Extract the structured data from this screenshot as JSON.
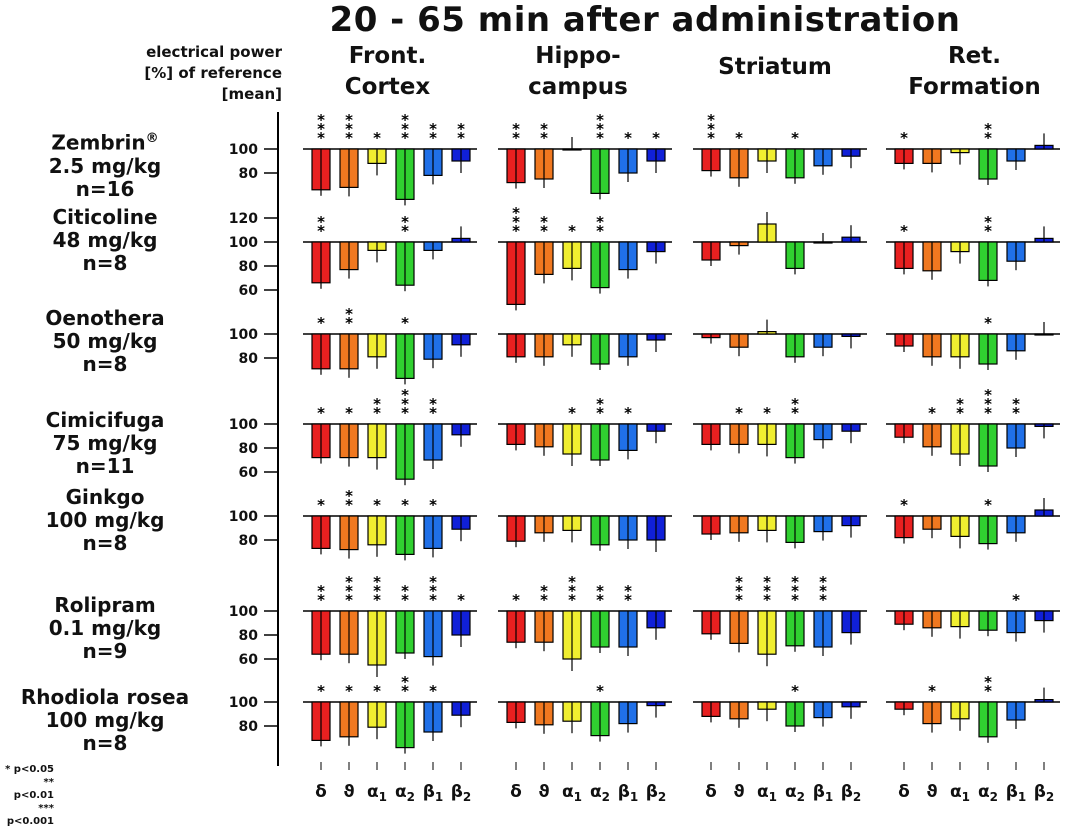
{
  "title": "20 - 65 min after administration",
  "y_axis_note": [
    "electrical power",
    "[%] of reference",
    "[mean]"
  ],
  "regions": [
    {
      "line1": "Front.",
      "line2": "Cortex"
    },
    {
      "line1": "Hippo-",
      "line2": "campus"
    },
    {
      "line1": "Striatum",
      "line2": ""
    },
    {
      "line1": "Ret.",
      "line2": "Formation"
    }
  ],
  "bands": [
    "δ",
    "ϑ",
    "α1",
    "α2",
    "β1",
    "β2"
  ],
  "band_colors": [
    "#e82020",
    "#f07820",
    "#f0ee30",
    "#30d030",
    "#2070e8",
    "#1020d8"
  ],
  "significance_legend": [
    "* p<0.05",
    "** p<0.01",
    "*** p<0.001"
  ],
  "chart_data": {
    "type": "bar",
    "title": "20 - 65 min after administration",
    "ylabel": "electrical power [%] of reference [mean]",
    "reference_line": 100,
    "categories": [
      "δ",
      "ϑ",
      "α1",
      "α2",
      "β1",
      "β2"
    ],
    "drugs": [
      {
        "name": "Zembrin®",
        "dose": "2.5 mg/kg",
        "n": "n=16",
        "ticks": [
          "100",
          "80"
        ],
        "regions": [
          {
            "values": [
              66,
              68,
              88,
              58,
              78,
              90
            ],
            "sig": [
              "***",
              "***",
              "*",
              "***",
              "**",
              "**"
            ]
          },
          {
            "values": [
              72,
              75,
              100,
              63,
              80,
              90
            ],
            "sig": [
              "**",
              "**",
              "",
              "***",
              "*",
              "*"
            ]
          },
          {
            "values": [
              82,
              76,
              90,
              76,
              86,
              94
            ],
            "sig": [
              "***",
              "*",
              "",
              "*",
              "",
              ""
            ]
          },
          {
            "values": [
              88,
              88,
              97,
              75,
              90,
              103
            ],
            "sig": [
              "*",
              "",
              "",
              "**",
              "",
              ""
            ]
          }
        ]
      },
      {
        "name": "Citicoline",
        "dose": "48 mg/kg",
        "n": "n=8",
        "ticks": [
          "120",
          "100",
          "80",
          "60"
        ],
        "regions": [
          {
            "values": [
              66,
              77,
              93,
              64,
              93,
              103
            ],
            "sig": [
              "**",
              "",
              "",
              "**",
              "",
              ""
            ]
          },
          {
            "values": [
              48,
              73,
              78,
              62,
              77,
              92
            ],
            "sig": [
              "***",
              "**",
              "*",
              "**",
              "",
              ""
            ]
          },
          {
            "values": [
              85,
              97,
              115,
              78,
              100,
              104
            ],
            "sig": [
              "",
              "",
              "",
              "",
              "",
              ""
            ]
          },
          {
            "values": [
              78,
              76,
              92,
              68,
              84,
              103
            ],
            "sig": [
              "*",
              "",
              "",
              "**",
              "",
              ""
            ]
          }
        ]
      },
      {
        "name": "Oenothera",
        "dose": "50 mg/kg",
        "n": "n=8",
        "ticks": [
          "100",
          "80"
        ],
        "regions": [
          {
            "values": [
              71,
              71,
              81,
              63,
              79,
              91
            ],
            "sig": [
              "*",
              "**",
              "",
              "*",
              "",
              ""
            ]
          },
          {
            "values": [
              81,
              81,
              91,
              75,
              81,
              95
            ],
            "sig": [
              "",
              "",
              "",
              "",
              "",
              ""
            ]
          },
          {
            "values": [
              97,
              89,
              102,
              81,
              89,
              98
            ],
            "sig": [
              "",
              "",
              "",
              "",
              "",
              ""
            ]
          },
          {
            "values": [
              90,
              81,
              81,
              75,
              86,
              100
            ],
            "sig": [
              "",
              "",
              "",
              "*",
              "",
              ""
            ]
          }
        ]
      },
      {
        "name": "Cimicifuga",
        "dose": "75 mg/kg",
        "n": "n=11",
        "ticks": [
          "100",
          "80",
          "60"
        ],
        "regions": [
          {
            "values": [
              72,
              72,
              72,
              54,
              70,
              91
            ],
            "sig": [
              "*",
              "*",
              "**",
              "***",
              "**",
              ""
            ]
          },
          {
            "values": [
              83,
              81,
              75,
              70,
              78,
              94
            ],
            "sig": [
              "",
              "",
              "*",
              "**",
              "*",
              ""
            ]
          },
          {
            "values": [
              83,
              83,
              83,
              72,
              87,
              94
            ],
            "sig": [
              "",
              "*",
              "*",
              "**",
              "",
              ""
            ]
          },
          {
            "values": [
              89,
              81,
              75,
              65,
              80,
              98
            ],
            "sig": [
              "",
              "*",
              "**",
              "***",
              "**",
              ""
            ]
          }
        ]
      },
      {
        "name": "Ginkgo",
        "dose": "100 mg/kg",
        "n": "n=8",
        "ticks": [
          "100",
          "80"
        ],
        "regions": [
          {
            "values": [
              73,
              72,
              76,
              68,
              73,
              89
            ],
            "sig": [
              "*",
              "**",
              "*",
              "*",
              "*",
              ""
            ]
          },
          {
            "values": [
              79,
              86,
              88,
              76,
              80,
              80
            ],
            "sig": [
              "",
              "",
              "",
              "",
              "",
              ""
            ]
          },
          {
            "values": [
              85,
              86,
              88,
              78,
              87,
              92
            ],
            "sig": [
              "",
              "",
              "",
              "",
              "",
              ""
            ]
          },
          {
            "values": [
              82,
              89,
              83,
              77,
              86,
              105
            ],
            "sig": [
              "*",
              "",
              "",
              "*",
              "",
              ""
            ]
          }
        ]
      },
      {
        "name": "Rolipram",
        "dose": "0.1 mg/kg",
        "n": "n=9",
        "ticks": [
          "100",
          "80",
          "60"
        ],
        "regions": [
          {
            "values": [
              64,
              64,
              55,
              65,
              62,
              80
            ],
            "sig": [
              "**",
              "***",
              "***",
              "**",
              "***",
              "*"
            ]
          },
          {
            "values": [
              74,
              74,
              60,
              70,
              70,
              86
            ],
            "sig": [
              "*",
              "**",
              "***",
              "**",
              "**",
              ""
            ]
          },
          {
            "values": [
              81,
              73,
              64,
              71,
              70,
              82
            ],
            "sig": [
              "",
              "***",
              "***",
              "***",
              "***",
              ""
            ]
          },
          {
            "values": [
              89,
              86,
              87,
              84,
              82,
              92
            ],
            "sig": [
              "",
              "",
              "",
              "",
              "*",
              ""
            ]
          }
        ]
      },
      {
        "name": "Rhodiola rosea",
        "dose": "100 mg/kg",
        "n": "n=8",
        "ticks": [
          "100",
          "80"
        ],
        "regions": [
          {
            "values": [
              68,
              71,
              79,
              62,
              75,
              89
            ],
            "sig": [
              "*",
              "*",
              "*",
              "**",
              "*",
              ""
            ]
          },
          {
            "values": [
              83,
              81,
              84,
              72,
              82,
              97
            ],
            "sig": [
              "",
              "",
              "",
              "*",
              "",
              ""
            ]
          },
          {
            "values": [
              88,
              86,
              94,
              80,
              87,
              96
            ],
            "sig": [
              "",
              "",
              "",
              "*",
              "",
              ""
            ]
          },
          {
            "values": [
              94,
              82,
              86,
              71,
              85,
              102
            ],
            "sig": [
              "",
              "*",
              "",
              "**",
              "",
              ""
            ]
          }
        ]
      }
    ]
  }
}
